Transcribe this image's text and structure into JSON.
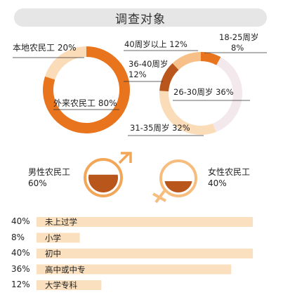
{
  "title": "调查对象",
  "colors": {
    "dark_orange": "#e8741e",
    "light_peach": "#fbdcb8",
    "mid_peach": "#f6c088",
    "brown": "#b8561c",
    "pale_pink": "#f3e8ec",
    "bar_fill": "#fbe0bf",
    "mars": "#f2a657",
    "venus": "#f6bd7f"
  },
  "chart_data": [
    {
      "type": "pie",
      "slices": [
        {
          "label": "本地农民工",
          "value": 20
        },
        {
          "label": "外来农民工",
          "value": 80
        }
      ]
    },
    {
      "type": "pie",
      "slices": [
        {
          "label": "18-25周岁",
          "value": 8
        },
        {
          "label": "26-30周岁",
          "value": 36
        },
        {
          "label": "31-35周岁",
          "value": 32
        },
        {
          "label": "36-40周岁",
          "value": 12
        },
        {
          "label": "40周岁以上",
          "value": 12
        }
      ]
    },
    {
      "type": "pie",
      "slices": [
        {
          "label": "男性农民工",
          "value": 60
        },
        {
          "label": "女性农民工",
          "value": 40
        }
      ]
    },
    {
      "type": "bar",
      "categories": [
        "未上过学",
        "小学",
        "初中",
        "高中或中专",
        "大学专科"
      ],
      "values": [
        40,
        8,
        40,
        36,
        12
      ],
      "value_labels": [
        "40%",
        "8%",
        "40%",
        "36%",
        "12%"
      ]
    }
  ],
  "labels": {
    "local": "本地农民工 20%",
    "outside": "外来农民工 80%",
    "age_18_25_name": "18-25周岁",
    "age_18_25_pct": "8%",
    "age_40plus": "40周岁以上 12%",
    "age_36_40_name": "36-40周岁",
    "age_36_40_pct": "12%",
    "age_26_30": "26-30周岁 36%",
    "age_31_35": "31-35周岁 32%",
    "male_name": "男性农民工",
    "male_pct": "60%",
    "female_name": "女性农民工",
    "female_pct": "40%"
  }
}
